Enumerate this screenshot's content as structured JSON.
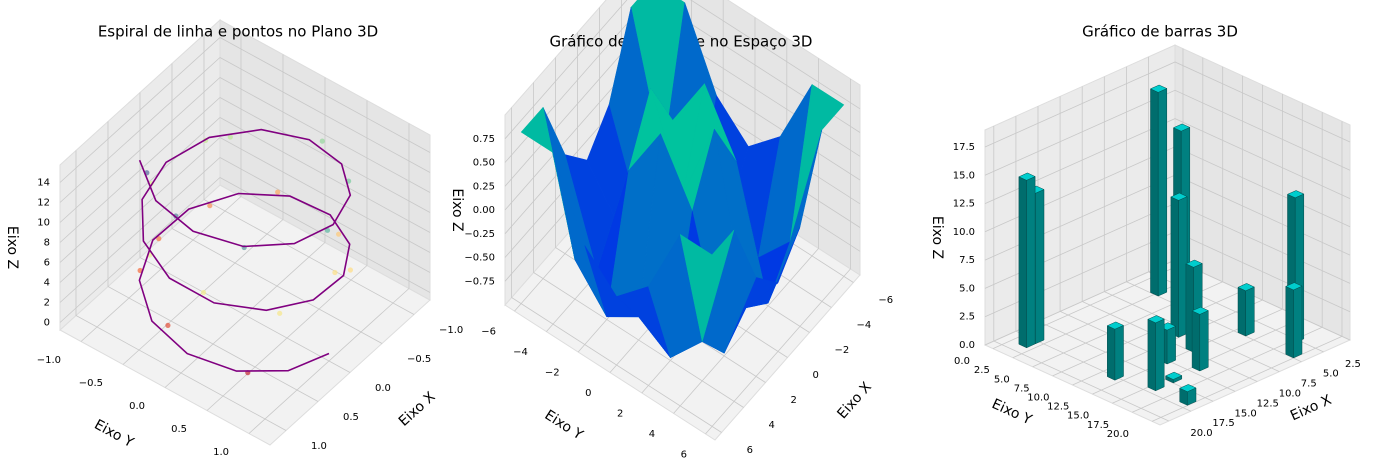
{
  "chart_data": [
    {
      "type": "line3d",
      "title": "Espiral de linha e pontos no Plano 3D",
      "xlabel": "Eixo X",
      "ylabel": "Eixo Y",
      "zlabel": "Eixo Z",
      "xlim": [
        -1.25,
        1.25
      ],
      "ylim": [
        -1.25,
        1.25
      ],
      "zlim": [
        -0.75,
        15.75
      ],
      "xticks": [
        {
          "value": -1,
          "label": "−1.0"
        },
        {
          "value": -0.5,
          "label": "−0.5"
        },
        {
          "value": 0,
          "label": "0.0"
        },
        0.5,
        {
          "value": 1,
          "label": "1.0"
        }
      ],
      "yticks": [
        {
          "value": -1,
          "label": "−1.0"
        },
        {
          "value": -0.5,
          "label": "−0.5"
        },
        {
          "value": 0,
          "label": "0.0"
        },
        0.5,
        {
          "value": 1,
          "label": "1.0"
        }
      ],
      "zticks": [
        0,
        2,
        4,
        6,
        8,
        10,
        12,
        14
      ],
      "line": {
        "color": "#800080",
        "x": [
          0,
          0.479,
          0.841,
          0.997,
          0.909,
          0.598,
          0.141,
          -0.351,
          -0.757,
          -0.978,
          -0.959,
          -0.706,
          -0.279,
          0.215,
          0.657,
          0.938,
          0.989,
          0.798,
          0.412,
          -0.075,
          -0.544,
          -0.88,
          -1.0,
          -0.875,
          -0.537,
          -0.066,
          0.42,
          0.804,
          0.991,
          0.935,
          0.65
        ],
        "y": [
          1,
          0.878,
          0.54,
          0.071,
          -0.416,
          -0.801,
          -0.99,
          -0.936,
          -0.654,
          -0.211,
          0.284,
          0.709,
          0.96,
          0.977,
          0.754,
          0.347,
          -0.146,
          -0.602,
          -0.911,
          -0.997,
          -0.839,
          -0.476,
          0.004,
          0.483,
          0.844,
          0.998,
          0.907,
          0.595,
          0.137,
          -0.35,
          -0.76
        ],
        "z": [
          0,
          0.5,
          1,
          1.5,
          2,
          2.5,
          3,
          3.5,
          4,
          4.5,
          5,
          5.5,
          6,
          6.5,
          7,
          7.5,
          8,
          8.5,
          9,
          9.5,
          10,
          10.5,
          11,
          11.5,
          12,
          12.5,
          13,
          13.5,
          14,
          14.5,
          15
        ]
      },
      "scatter": {
        "colormap": "Spectral",
        "x": [
          0.77,
          0.85,
          0.51,
          -0.5,
          -0.97,
          -0.78,
          -0.25,
          0.6,
          0.91,
          0.9,
          0.22,
          -0.65,
          -1.05,
          -0.7,
          0.05,
          0.8,
          0.95,
          0.72,
          0.1,
          -0.4,
          -0.5
        ],
        "y": [
          0.62,
          -0.27,
          -0.86,
          -0.8,
          -0.35,
          0.52,
          0.88,
          0.87,
          0.2,
          -0.45,
          -0.95,
          -0.67,
          0.12,
          0.7,
          1.02,
          0.6,
          -0.1,
          -0.62,
          -0.95,
          0.95,
          -0.85
        ],
        "z": [
          0.8,
          1.9,
          2.7,
          3.6,
          4.3,
          5.2,
          6.1,
          6.9,
          7.7,
          8.4,
          9.3,
          10.2,
          11.1,
          11.8,
          12.7,
          13.4,
          14.2,
          14.8,
          3.1,
          5.8,
          9.9
        ]
      }
    },
    {
      "type": "surface",
      "title": "Gráfico de superfície no Espaço 3D",
      "xlabel": "Eixo X",
      "ylabel": "Eixo Y",
      "zlabel": "Eixo Z",
      "xlim": [
        -6.6,
        6.6
      ],
      "ylim": [
        -6.6,
        6.6
      ],
      "zlim": [
        -1,
        1
      ],
      "xticks": [
        {
          "value": -6,
          "label": "−6"
        },
        {
          "value": -4,
          "label": "−4"
        },
        {
          "value": -2,
          "label": "−2"
        },
        0,
        2,
        4,
        6
      ],
      "yticks": [
        {
          "value": -6,
          "label": "−6"
        },
        {
          "value": -4,
          "label": "−4"
        },
        {
          "value": -2,
          "label": "−2"
        },
        0,
        2,
        4,
        6
      ],
      "zticks": [
        {
          "value": -0.75,
          "label": "−0.75"
        },
        {
          "value": -0.5,
          "label": "−0.50"
        },
        {
          "value": -0.25,
          "label": "−0.25"
        },
        {
          "value": 0,
          "label": "0.00"
        },
        0.25,
        {
          "value": 0.5,
          "label": "0.50"
        },
        0.75
      ],
      "colormap": "winter",
      "x": [
        -6,
        -4,
        -2,
        0,
        2,
        4,
        6
      ],
      "y": [
        -6,
        -4,
        -2,
        0,
        2,
        4,
        6
      ],
      "z": [
        [
          0.806,
          0.805,
          0.042,
          -0.279,
          0.042,
          0.805,
          0.806
        ],
        [
          0.805,
          -0.586,
          -0.971,
          -0.757,
          -0.971,
          -0.586,
          0.805
        ],
        [
          0.042,
          -0.971,
          0.308,
          0.909,
          0.308,
          -0.971,
          0.042
        ],
        [
          -0.279,
          -0.757,
          0.909,
          0,
          0.909,
          -0.757,
          -0.279
        ],
        [
          0.042,
          -0.971,
          0.308,
          0.909,
          0.308,
          -0.971,
          0.042
        ],
        [
          0.805,
          -0.586,
          -0.971,
          -0.757,
          -0.971,
          -0.586,
          0.805
        ],
        [
          0.806,
          0.805,
          0.042,
          -0.279,
          0.042,
          0.805,
          0.806
        ]
      ]
    },
    {
      "type": "bar3d",
      "title": "Gráfico de barras 3D",
      "xlabel": "Eixo X",
      "ylabel": "Eixo Y",
      "zlabel": "Eixo Z",
      "xlim": [
        -0.5,
        21
      ],
      "ylim": [
        -1,
        21
      ],
      "zlim": [
        0,
        19
      ],
      "xticks": [
        2.5,
        {
          "value": 5,
          "label": "5.0"
        },
        7.5,
        {
          "value": 10,
          "label": "10.0"
        },
        12.5,
        {
          "value": 15,
          "label": "15.0"
        },
        17.5,
        {
          "value": 20,
          "label": "20.0"
        }
      ],
      "yticks": [
        {
          "value": 0,
          "label": "0.0"
        },
        2.5,
        {
          "value": 5,
          "label": "5.0"
        },
        7.5,
        {
          "value": 10,
          "label": "10.0"
        },
        12.5,
        {
          "value": 15,
          "label": "15.0"
        },
        17.5,
        {
          "value": 20,
          "label": "20.0"
        }
      ],
      "zticks": [
        {
          "value": 0,
          "label": "0.0"
        },
        2.5,
        {
          "value": 5,
          "label": "5.0"
        },
        7.5,
        {
          "value": 10,
          "label": "10.0"
        },
        12.5,
        {
          "value": 15,
          "label": "15.0"
        },
        17.5
      ],
      "bars": {
        "color": "#008080",
        "x": [
          18,
          17,
          4,
          17,
          16,
          8,
          5,
          9,
          14,
          16,
          12,
          2,
          4,
          4,
          11
        ],
        "y": [
          1,
          1,
          2,
          11,
          15,
          9,
          6,
          12,
          15,
          19,
          12,
          17,
          19,
          13,
          15
        ],
        "z": [
          14.8,
          13.3,
          18.0,
          4.5,
          6.0,
          12.1,
          16.2,
          7.5,
          0.3,
          1.2,
          3.0,
          12.8,
          6.0,
          4.0,
          5.0
        ]
      }
    }
  ]
}
